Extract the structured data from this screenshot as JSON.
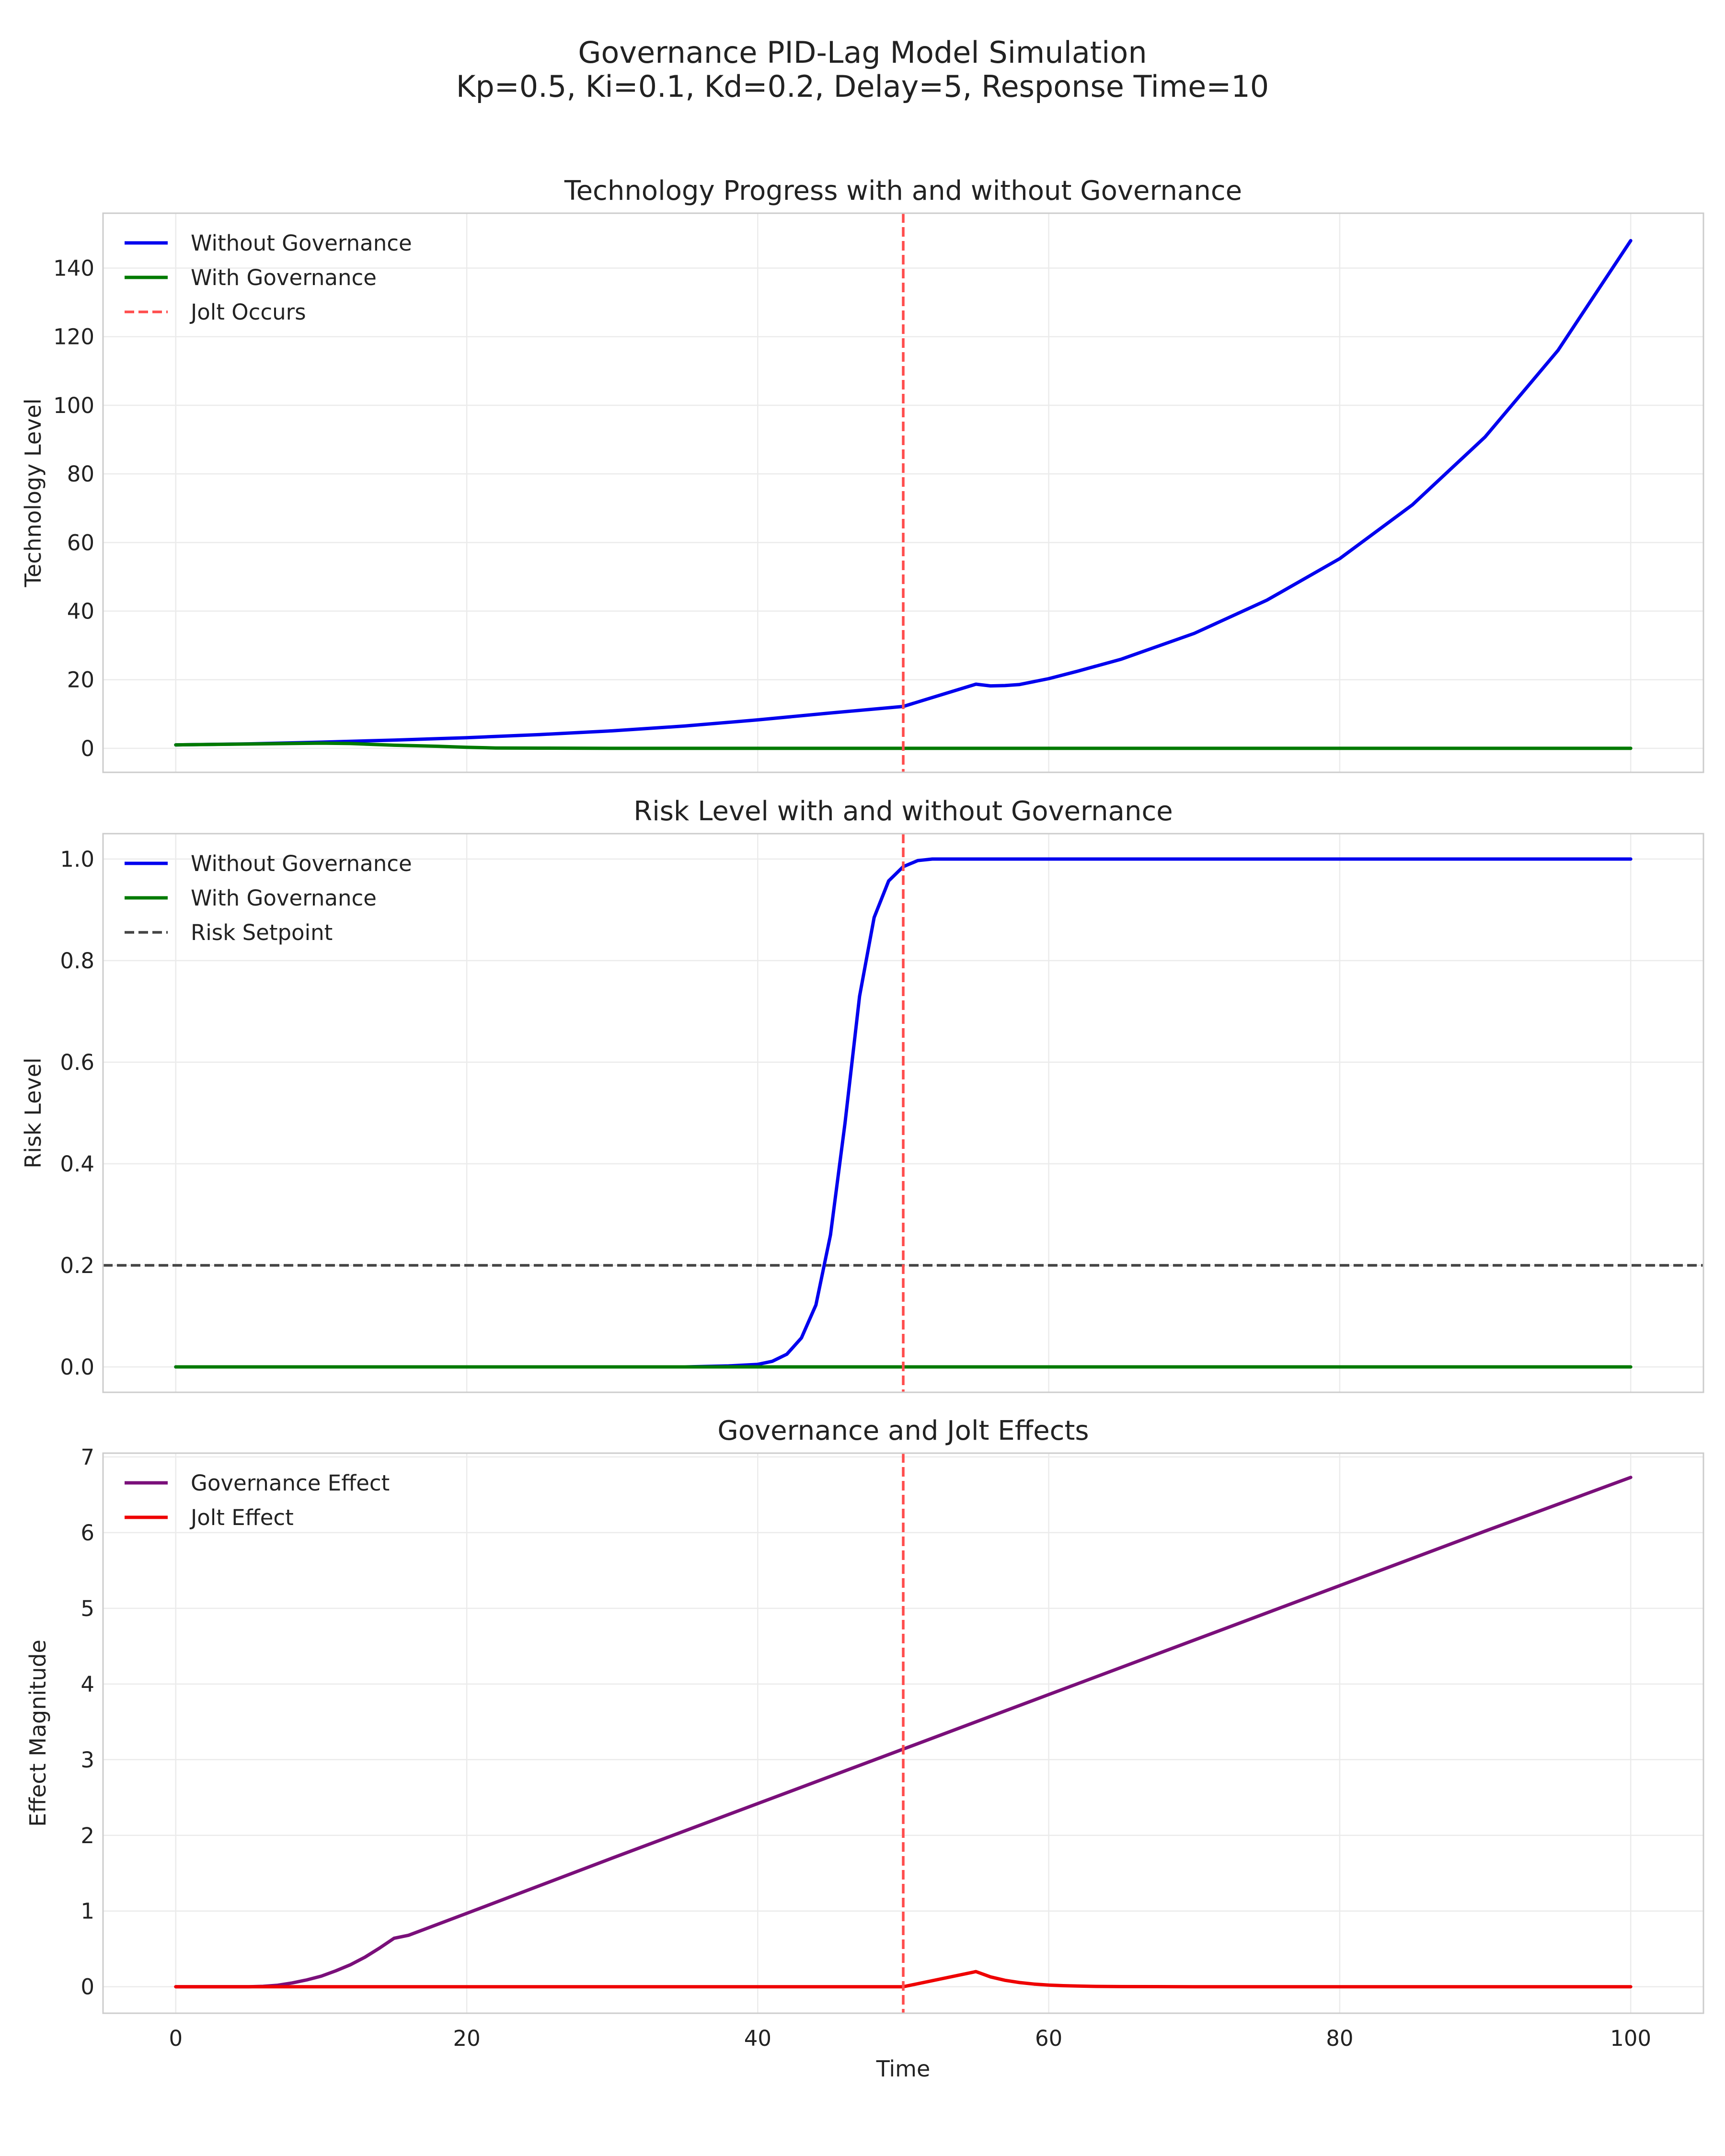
{
  "figure": {
    "title_line1": "Governance PID-Lag Model Simulation",
    "title_line2": "Kp=0.5, Ki=0.1, Kd=0.2, Delay=5, Response Time=10"
  },
  "colors": {
    "without": "#0000ee",
    "with": "#007a00",
    "jolt_line": "#ff4d4d",
    "setpoint": "#444444",
    "governance_effect": "#7a0f7a",
    "jolt_effect": "#ee0000"
  },
  "chart_data": [
    {
      "type": "line",
      "title": "Technology Progress with and without Governance",
      "xlabel": "",
      "ylabel": "Technology Level",
      "xlim": [
        -5,
        105
      ],
      "ylim": [
        -7,
        156
      ],
      "xticks": [
        0,
        20,
        40,
        60,
        80,
        100
      ],
      "yticks": [
        0,
        20,
        40,
        60,
        80,
        100,
        120,
        140
      ],
      "grid": true,
      "legend": "top-left",
      "series": [
        {
          "name": "Without Governance",
          "color": "#0000ee",
          "x": [
            0,
            5,
            10,
            15,
            20,
            25,
            30,
            35,
            40,
            45,
            50,
            52,
            55,
            56,
            57,
            58,
            60,
            62,
            65,
            70,
            75,
            80,
            85,
            90,
            95,
            100
          ],
          "y": [
            1.0,
            1.3,
            1.8,
            2.4,
            3.1,
            4.0,
            5.1,
            6.5,
            8.3,
            10.3,
            12.2,
            14.8,
            18.7,
            18.2,
            18.3,
            18.6,
            20.3,
            22.5,
            26.0,
            33.5,
            43.2,
            55.3,
            71.0,
            90.8,
            116.0,
            148.0
          ]
        },
        {
          "name": "With Governance",
          "color": "#007a00",
          "x": [
            0,
            5,
            10,
            12,
            15,
            18,
            20,
            22,
            25,
            30,
            40,
            50,
            60,
            70,
            80,
            90,
            100
          ],
          "y": [
            1.0,
            1.25,
            1.5,
            1.4,
            0.9,
            0.6,
            0.3,
            0.1,
            0.05,
            0,
            0,
            0,
            0,
            0,
            0,
            0,
            0
          ]
        },
        {
          "name": "Jolt Occurs",
          "color": "#ff4d4d",
          "style": "dashed",
          "vline_x": 50
        }
      ]
    },
    {
      "type": "line",
      "title": "Risk Level with and without Governance",
      "xlabel": "",
      "ylabel": "Risk Level",
      "xlim": [
        -5,
        105
      ],
      "ylim": [
        -0.05,
        1.05
      ],
      "xticks": [
        0,
        20,
        40,
        60,
        80,
        100
      ],
      "yticks": [
        0.0,
        0.2,
        0.4,
        0.6,
        0.8,
        1.0
      ],
      "grid": true,
      "legend": "top-left",
      "series": [
        {
          "name": "Without Governance",
          "color": "#0000ee",
          "x": [
            0,
            20,
            35,
            38,
            40,
            41,
            42,
            43,
            44,
            45,
            46,
            47,
            48,
            49,
            50,
            51,
            52,
            55,
            60,
            80,
            100
          ],
          "y": [
            0,
            0,
            0,
            0.002,
            0.005,
            0.011,
            0.025,
            0.057,
            0.122,
            0.26,
            0.48,
            0.73,
            0.885,
            0.957,
            0.985,
            0.997,
            1.0,
            1.0,
            1.0,
            1.0,
            1.0
          ]
        },
        {
          "name": "With Governance",
          "color": "#007a00",
          "x": [
            0,
            100
          ],
          "y": [
            0,
            0
          ]
        },
        {
          "name": "Risk Setpoint",
          "color": "#444444",
          "style": "dashed",
          "hline_y": 0.2
        }
      ],
      "vline_x": 50
    },
    {
      "type": "line",
      "title": "Governance and Jolt Effects",
      "xlabel": "Time",
      "ylabel": "Effect Magnitude",
      "xlim": [
        -5,
        105
      ],
      "ylim": [
        -0.35,
        7.05
      ],
      "xticks": [
        0,
        20,
        40,
        60,
        80,
        100
      ],
      "yticks": [
        0,
        1,
        2,
        3,
        4,
        5,
        6,
        7
      ],
      "grid": true,
      "legend": "top-left",
      "series": [
        {
          "name": "Governance Effect",
          "color": "#7a0f7a",
          "x": [
            0,
            5,
            6,
            7,
            8,
            9,
            10,
            11,
            12,
            13,
            14,
            15,
            16,
            20,
            30,
            40,
            50,
            60,
            70,
            80,
            90,
            100
          ],
          "y": [
            0,
            0,
            0.005,
            0.02,
            0.05,
            0.09,
            0.14,
            0.21,
            0.29,
            0.39,
            0.51,
            0.64,
            0.68,
            0.97,
            1.7,
            2.42,
            3.14,
            3.86,
            4.58,
            5.3,
            6.02,
            6.73
          ]
        },
        {
          "name": "Jolt Effect",
          "color": "#ee0000",
          "x": [
            0,
            50,
            55,
            56,
            57,
            58,
            59,
            60,
            61,
            62,
            63,
            65,
            70,
            100
          ],
          "y": [
            0,
            0,
            0.2,
            0.13,
            0.085,
            0.055,
            0.035,
            0.022,
            0.014,
            0.009,
            0.005,
            0.002,
            0,
            0
          ]
        }
      ],
      "vline_x": 50
    }
  ]
}
